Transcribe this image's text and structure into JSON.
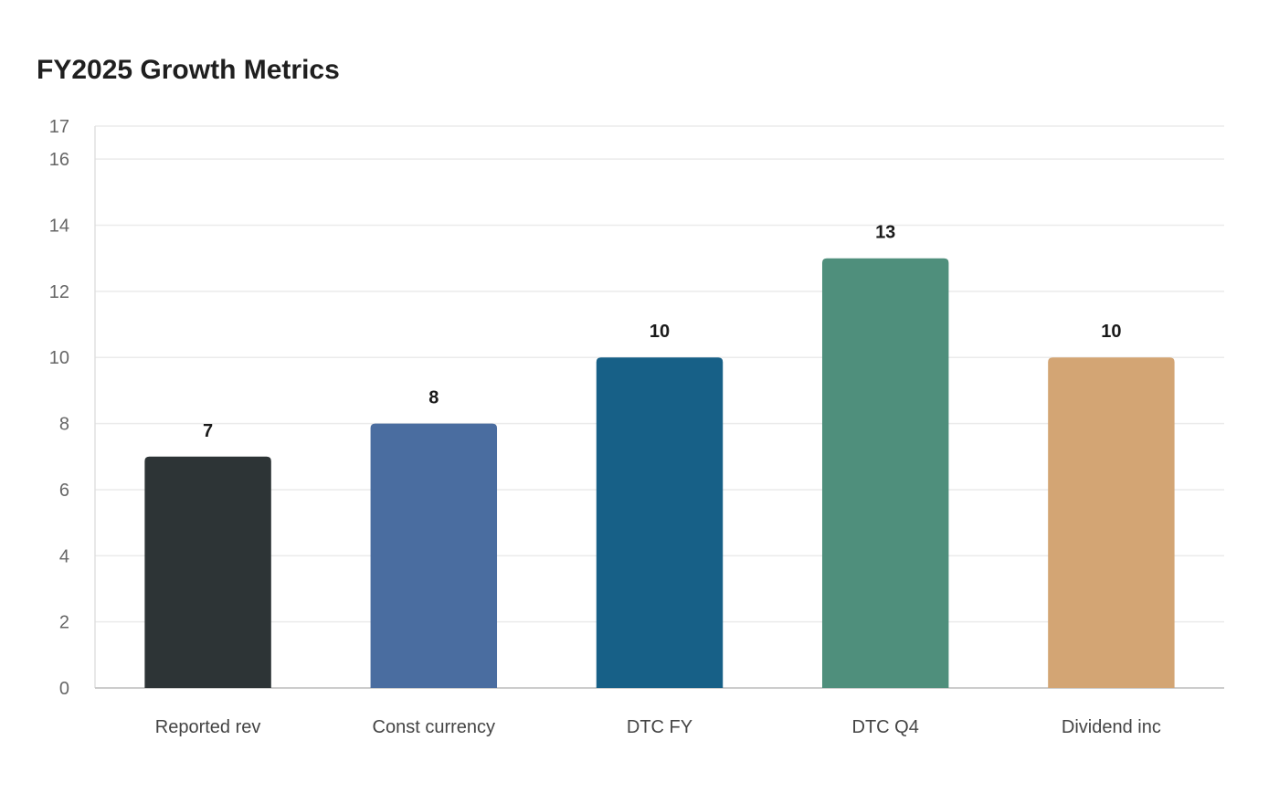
{
  "chart_data": {
    "type": "bar",
    "title": "FY2025 Growth Metrics",
    "xlabel": "",
    "ylabel": "",
    "categories": [
      "Reported rev",
      "Const currency",
      "DTC FY",
      "DTC Q4",
      "Dividend inc"
    ],
    "values": [
      7,
      8,
      10,
      13,
      10
    ],
    "colors": [
      "#2d3436",
      "#4a6da0",
      "#176087",
      "#4f8f7c",
      "#d3a574"
    ],
    "ylim": [
      0,
      17
    ],
    "yticks": [
      0,
      2,
      4,
      6,
      8,
      10,
      12,
      14,
      16,
      17
    ],
    "grid": true,
    "legend": "none"
  }
}
